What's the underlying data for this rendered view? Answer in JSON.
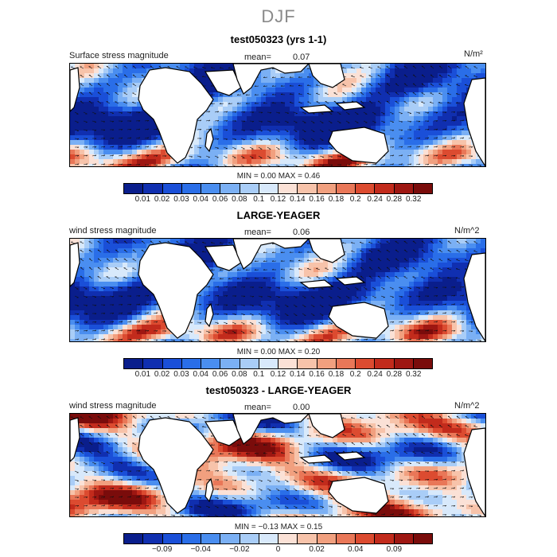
{
  "page_title": "DJF",
  "colors": {
    "scale": [
      "#0a1e8c",
      "#102fb0",
      "#1a4fd8",
      "#2a6ee8",
      "#4a8ef0",
      "#7bb0f4",
      "#a9cdf7",
      "#d8e9fb",
      "#fbe1d6",
      "#f7c3aa",
      "#f1a07f",
      "#e97758",
      "#dc4b30",
      "#c22b1c",
      "#9e1712",
      "#7a0c0b"
    ],
    "land": "#ffffff",
    "vector": "#111111"
  },
  "panels": [
    {
      "title": "test050323 (yrs 1-1)",
      "variable_label": "Surface stress magnitude",
      "mean_label": "mean=",
      "mean_value": "0.07",
      "units": "N/m²",
      "minmax_text": "MIN =    0.00  MAX =    0.46",
      "field": "abs1",
      "colorbar_ticks": [
        "0.01",
        "0.02",
        "0.03",
        "0.04",
        "0.06",
        "0.08",
        "0.1",
        "0.12",
        "0.14",
        "0.16",
        "0.18",
        "0.2",
        "0.24",
        "0.28",
        "0.32"
      ]
    },
    {
      "title": "LARGE-YEAGER",
      "variable_label": "wind stress magnitude",
      "mean_label": "mean=",
      "mean_value": "0.06",
      "units": "N/m^2",
      "minmax_text": "MIN =    0.00  MAX =    0.20",
      "field": "abs2",
      "colorbar_ticks": [
        "0.01",
        "0.02",
        "0.03",
        "0.04",
        "0.06",
        "0.08",
        "0.1",
        "0.12",
        "0.14",
        "0.16",
        "0.18",
        "0.2",
        "0.24",
        "0.28",
        "0.32"
      ]
    },
    {
      "title": "test050323 - LARGE-YEAGER",
      "variable_label": "wind stress magnitude",
      "mean_label": "mean=",
      "mean_value": "0.00",
      "units": "N/m^2",
      "minmax_text": "MIN =   −0.13  MAX =    0.15",
      "field": "diff",
      "colorbar_ticks": [
        "−0.09",
        "−0.04",
        "−0.02",
        "0",
        "0.02",
        "0.04",
        "0.09"
      ]
    }
  ]
}
